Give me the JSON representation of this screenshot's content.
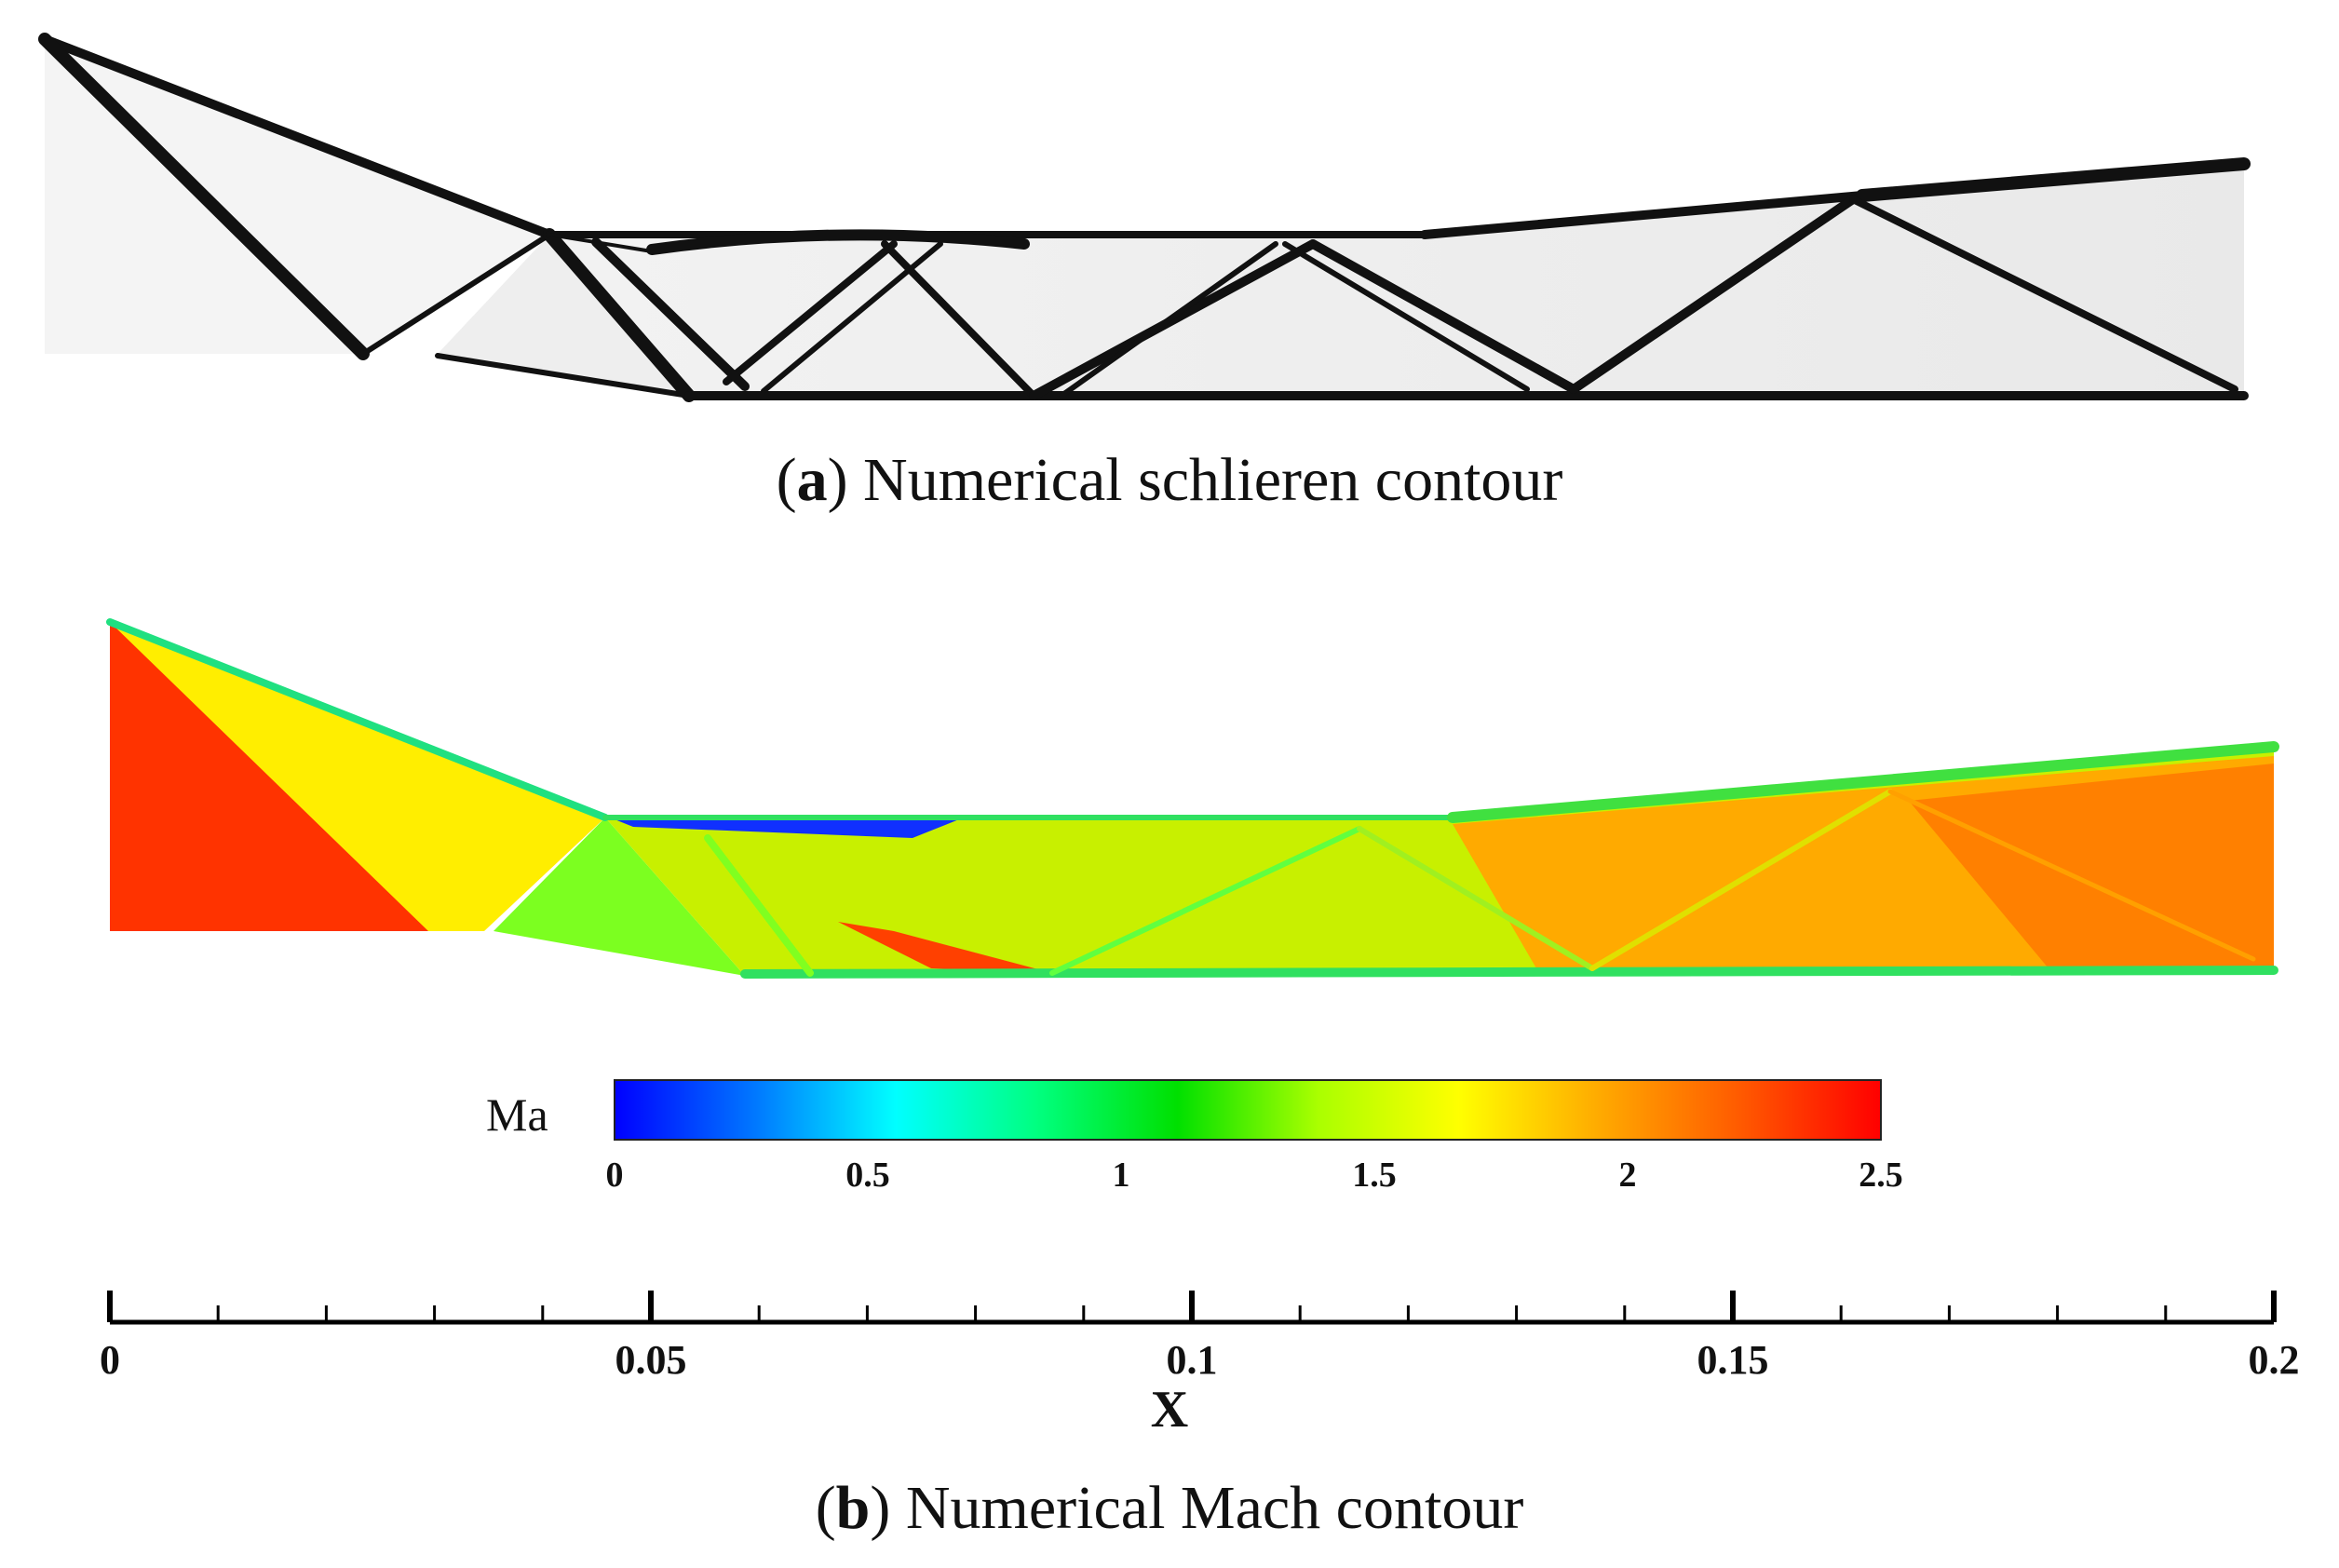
{
  "panel_a": {
    "caption_tag": "a",
    "caption_text": "Numerical schlieren contour"
  },
  "panel_b": {
    "caption_tag": "b",
    "caption_text": "Numerical Mach contour"
  },
  "colorbar": {
    "label": "Ma",
    "ticks": [
      "0",
      "0.5",
      "1",
      "1.5",
      "2",
      "2.5"
    ],
    "range": [
      0,
      2.5
    ],
    "colors": [
      "#0000ff",
      "#0078ff",
      "#00ffff",
      "#00ff80",
      "#00e000",
      "#aaff00",
      "#ffff00",
      "#ffaa00",
      "#ff5a00",
      "#ff0000"
    ]
  },
  "x_axis": {
    "title": "X",
    "ticks": [
      "0",
      "0.05",
      "0.1",
      "0.15",
      "0.2"
    ],
    "range": [
      0,
      0.2
    ],
    "minor_per_major": 5
  }
}
